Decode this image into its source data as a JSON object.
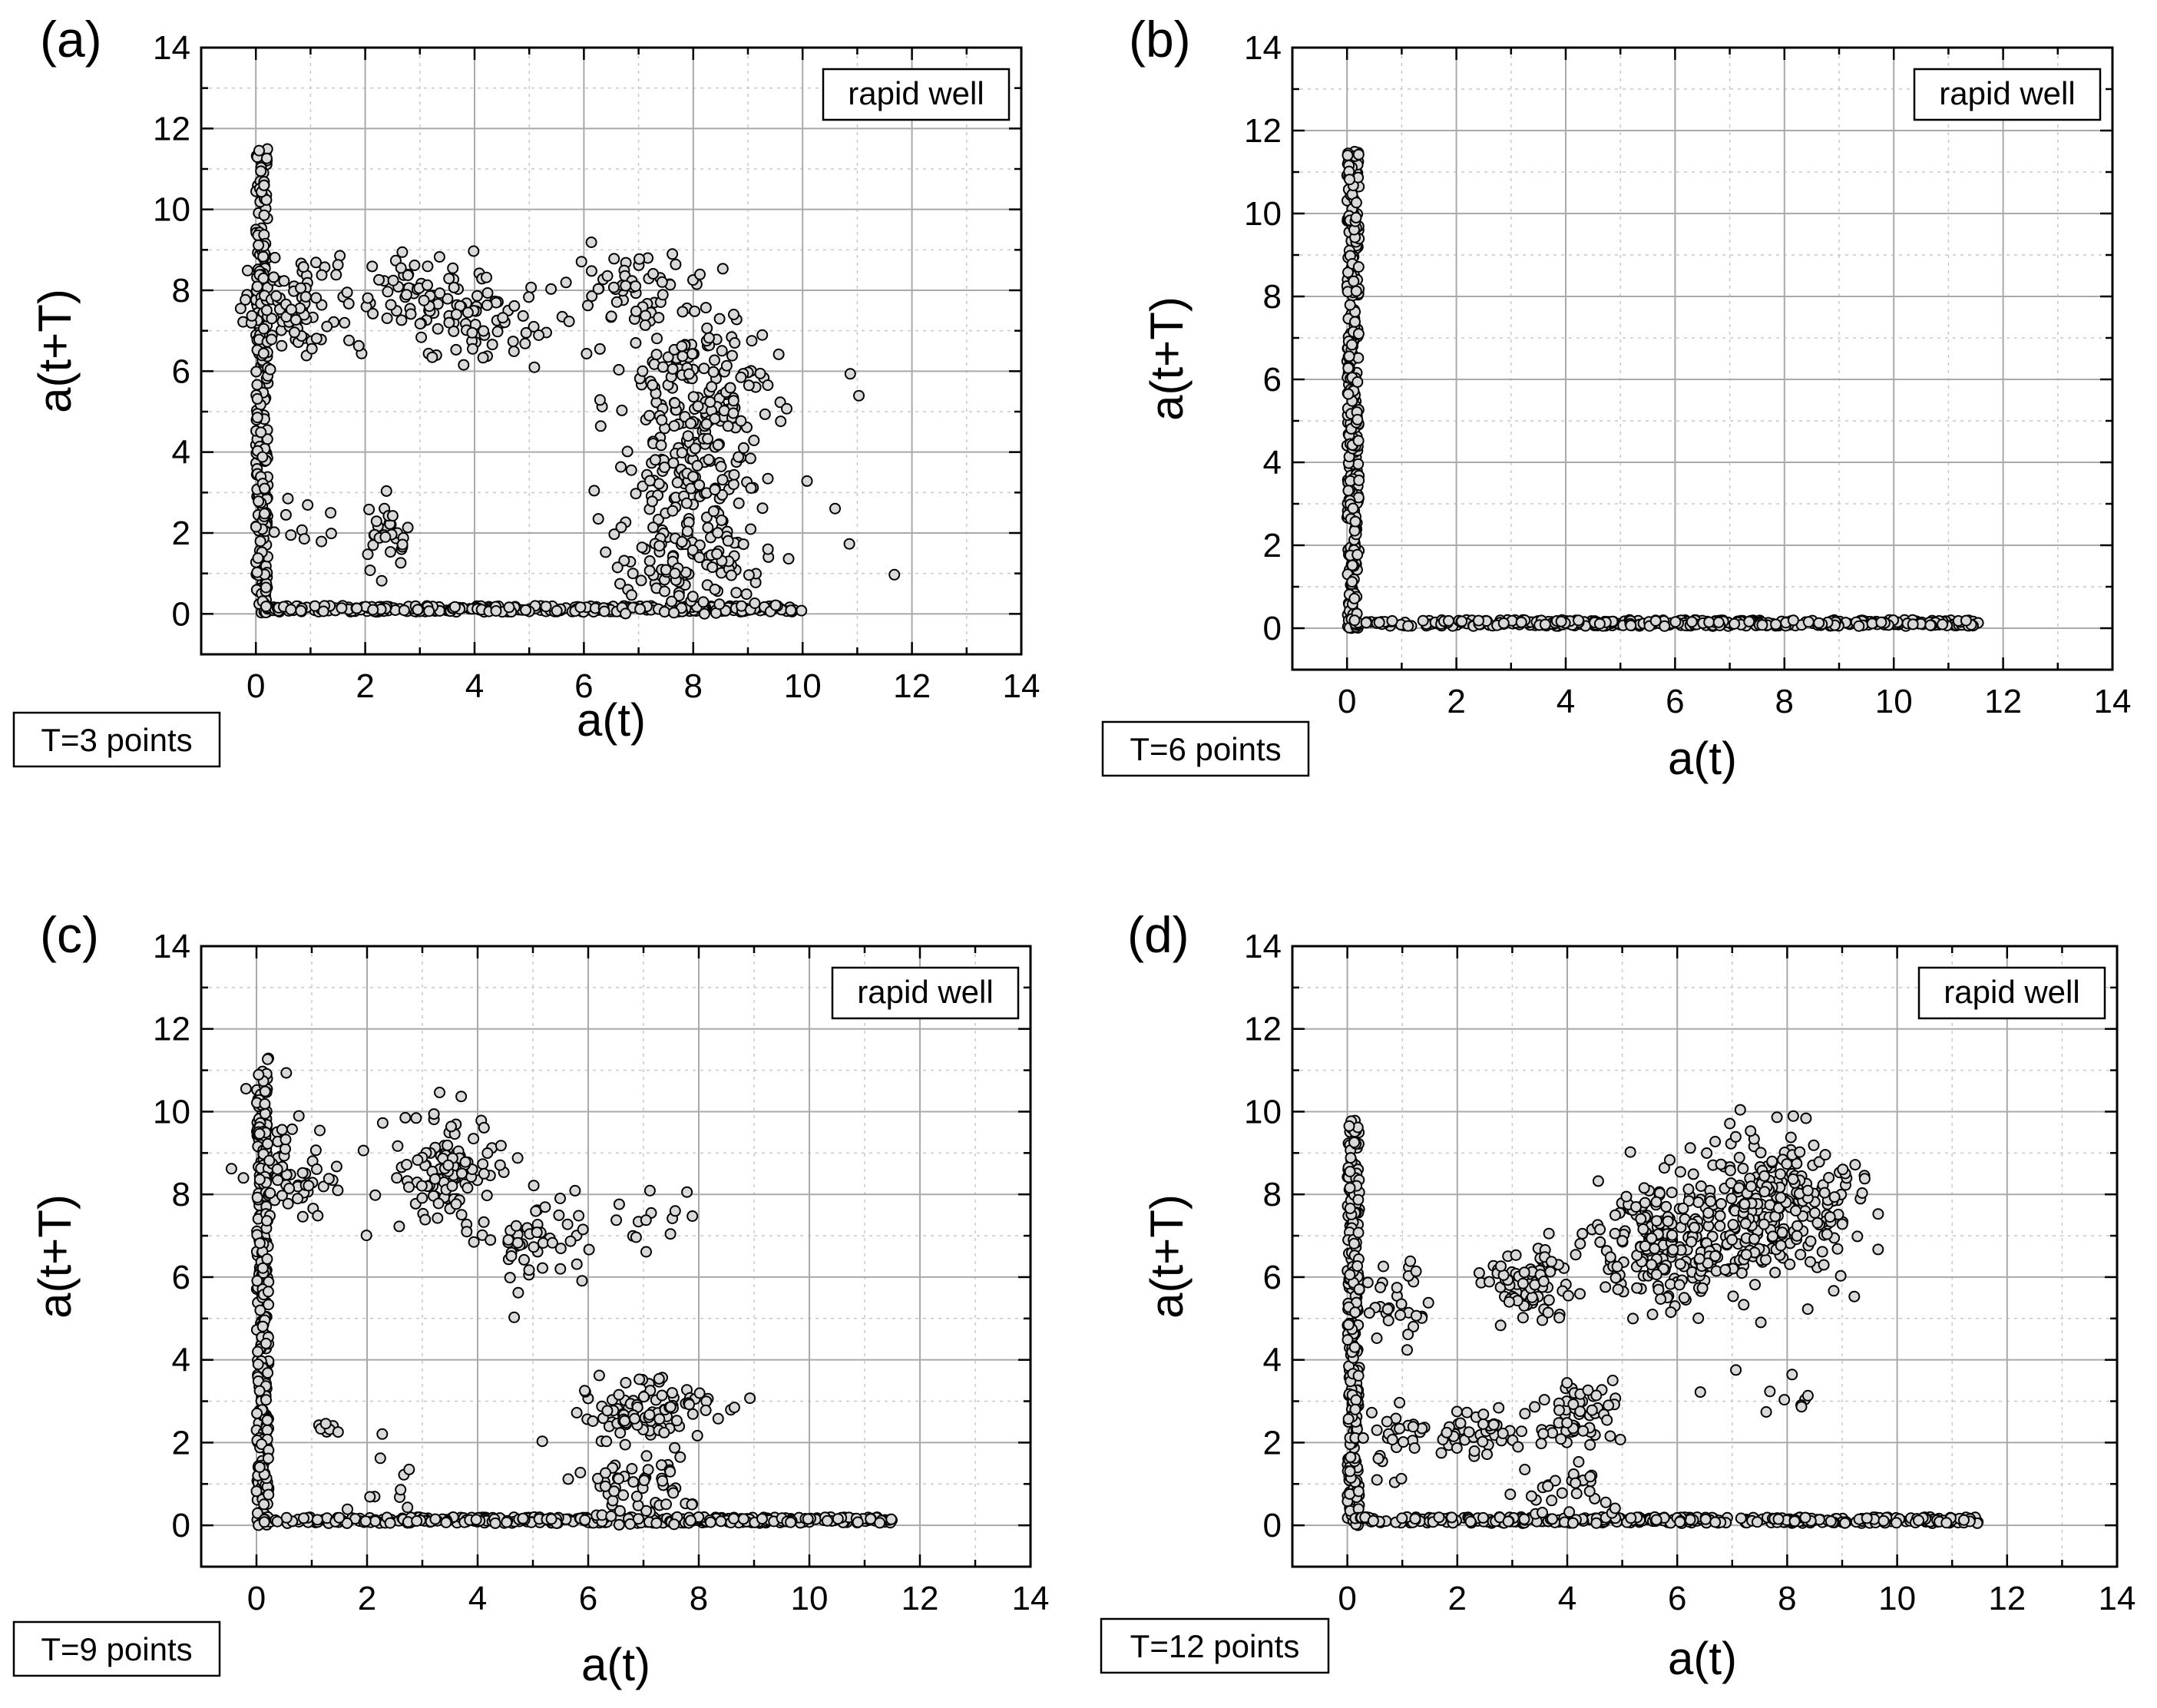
{
  "figure": {
    "description_labels": [
      "(a)",
      "(b)",
      "(c)",
      "(d)"
    ]
  },
  "chart_data": [
    {
      "type": "scatter",
      "panel_label": "(a)",
      "xlabel": "a(t)",
      "ylabel": "a(t+T)",
      "legend": "rapid well",
      "delay_label": "T=3 points",
      "xlim": [
        -1,
        14
      ],
      "ylim": [
        -1,
        14
      ],
      "xticks": [
        0,
        2,
        4,
        6,
        8,
        10,
        12,
        14
      ],
      "yticks": [
        0,
        2,
        4,
        6,
        8,
        10,
        12,
        14
      ],
      "grid": true,
      "marker_fill": "#d9d9d9",
      "marker_stroke": "#000000",
      "clusters": [
        {
          "shape": "vline",
          "x": [
            0.0,
            0.22
          ],
          "y": [
            0.0,
            11.5
          ],
          "n": 260
        },
        {
          "shape": "hline",
          "x": [
            0.1,
            10.0
          ],
          "y": [
            0.05,
            0.2
          ],
          "n": 320
        },
        {
          "shape": "blob",
          "cx": 0.8,
          "cy": 7.6,
          "sx": 0.6,
          "sy": 0.6,
          "n": 80
        },
        {
          "shape": "blob",
          "cx": 2.9,
          "cy": 8.0,
          "sx": 0.55,
          "sy": 0.6,
          "n": 60
        },
        {
          "shape": "blob",
          "cx": 4.2,
          "cy": 7.2,
          "sx": 0.55,
          "sy": 0.5,
          "n": 60
        },
        {
          "shape": "blob",
          "cx": 6.9,
          "cy": 8.0,
          "sx": 0.7,
          "sy": 0.6,
          "n": 60
        },
        {
          "shape": "blob",
          "cx": 8.1,
          "cy": 5.6,
          "sx": 0.7,
          "sy": 0.9,
          "n": 150
        },
        {
          "shape": "blob",
          "cx": 8.1,
          "cy": 3.4,
          "sx": 0.6,
          "sy": 0.8,
          "n": 110
        },
        {
          "shape": "blob",
          "cx": 8.0,
          "cy": 1.2,
          "sx": 0.7,
          "sy": 0.7,
          "n": 110
        },
        {
          "shape": "blob",
          "cx": 2.4,
          "cy": 1.8,
          "sx": 0.2,
          "sy": 0.5,
          "n": 30
        },
        {
          "shape": "blob",
          "cx": 1.0,
          "cy": 2.3,
          "sx": 0.3,
          "sy": 0.3,
          "n": 10
        },
        {
          "shape": "blob",
          "cx": 10.5,
          "cy": 3.0,
          "sx": 0.7,
          "sy": 1.8,
          "n": 8
        }
      ]
    },
    {
      "type": "scatter",
      "panel_label": "(b)",
      "xlabel": "a(t)",
      "ylabel": "a(t+T)",
      "legend": "rapid well",
      "delay_label": "T=6 points",
      "xlim": [
        -1,
        14
      ],
      "ylim": [
        -1,
        14
      ],
      "xticks": [
        0,
        2,
        4,
        6,
        8,
        10,
        12,
        14
      ],
      "yticks": [
        0,
        2,
        4,
        6,
        8,
        10,
        12,
        14
      ],
      "grid": true,
      "marker_fill": "#d9d9d9",
      "marker_stroke": "#000000",
      "clusters": [
        {
          "shape": "vline",
          "x": [
            0.0,
            0.22
          ],
          "y": [
            0.0,
            11.5
          ],
          "n": 320
        },
        {
          "shape": "hline",
          "x": [
            0.1,
            11.6
          ],
          "y": [
            0.05,
            0.2
          ],
          "n": 420
        }
      ]
    },
    {
      "type": "scatter",
      "panel_label": "(c)",
      "xlabel": "a(t)",
      "ylabel": "a(t+T)",
      "legend": "rapid well",
      "delay_label": "T=9 points",
      "xlim": [
        -1,
        14
      ],
      "ylim": [
        -1,
        14
      ],
      "xticks": [
        0,
        2,
        4,
        6,
        8,
        10,
        12,
        14
      ],
      "yticks": [
        0,
        2,
        4,
        6,
        8,
        10,
        12,
        14
      ],
      "grid": true,
      "marker_fill": "#d9d9d9",
      "marker_stroke": "#000000",
      "clusters": [
        {
          "shape": "vline",
          "x": [
            0.0,
            0.22
          ],
          "y": [
            0.0,
            11.3
          ],
          "n": 280
        },
        {
          "shape": "hline",
          "x": [
            0.1,
            11.5
          ],
          "y": [
            0.05,
            0.2
          ],
          "n": 380
        },
        {
          "shape": "blob",
          "cx": 0.6,
          "cy": 8.4,
          "sx": 0.4,
          "sy": 0.8,
          "n": 60
        },
        {
          "shape": "blob",
          "cx": 3.4,
          "cy": 8.5,
          "sx": 0.5,
          "sy": 0.7,
          "n": 110
        },
        {
          "shape": "blob",
          "cx": 5.0,
          "cy": 7.0,
          "sx": 0.6,
          "sy": 0.6,
          "n": 50
        },
        {
          "shape": "blob",
          "cx": 6.9,
          "cy": 7.2,
          "sx": 0.6,
          "sy": 0.6,
          "n": 15
        },
        {
          "shape": "blob",
          "cx": 7.2,
          "cy": 2.8,
          "sx": 0.6,
          "sy": 0.4,
          "n": 90
        },
        {
          "shape": "blob",
          "cx": 7.0,
          "cy": 0.9,
          "sx": 0.6,
          "sy": 0.5,
          "n": 60
        },
        {
          "shape": "blob",
          "cx": 1.2,
          "cy": 2.3,
          "sx": 0.2,
          "sy": 0.1,
          "n": 8
        },
        {
          "shape": "blob",
          "cx": 2.3,
          "cy": 1.0,
          "sx": 0.3,
          "sy": 0.8,
          "n": 10
        }
      ]
    },
    {
      "type": "scatter",
      "panel_label": "(d)",
      "xlabel": "a(t)",
      "ylabel": "a(t+T)",
      "legend": "rapid well",
      "delay_label": "T=12 points",
      "xlim": [
        -1,
        14
      ],
      "ylim": [
        -1,
        14
      ],
      "xticks": [
        0,
        2,
        4,
        6,
        8,
        10,
        12,
        14
      ],
      "yticks": [
        0,
        2,
        4,
        6,
        8,
        10,
        12,
        14
      ],
      "grid": true,
      "marker_fill": "#d9d9d9",
      "marker_stroke": "#000000",
      "clusters": [
        {
          "shape": "vline",
          "x": [
            0.0,
            0.22
          ],
          "y": [
            0.0,
            9.8
          ],
          "n": 260
        },
        {
          "shape": "hline",
          "x": [
            0.1,
            11.5
          ],
          "y": [
            0.05,
            0.2
          ],
          "n": 360
        },
        {
          "shape": "blob",
          "cx": 0.8,
          "cy": 5.5,
          "sx": 0.3,
          "sy": 0.5,
          "n": 30
        },
        {
          "shape": "blob",
          "cx": 3.3,
          "cy": 5.9,
          "sx": 0.4,
          "sy": 0.4,
          "n": 80
        },
        {
          "shape": "blob",
          "cx": 5.8,
          "cy": 6.8,
          "sx": 0.7,
          "sy": 0.8,
          "n": 200
        },
        {
          "shape": "blob",
          "cx": 7.8,
          "cy": 7.8,
          "sx": 0.8,
          "sy": 0.9,
          "n": 260
        },
        {
          "shape": "blob",
          "cx": 4.2,
          "cy": 2.7,
          "sx": 0.4,
          "sy": 0.4,
          "n": 60
        },
        {
          "shape": "blob",
          "cx": 2.2,
          "cy": 2.3,
          "sx": 0.5,
          "sy": 0.3,
          "n": 50
        },
        {
          "shape": "blob",
          "cx": 4.0,
          "cy": 0.8,
          "sx": 0.4,
          "sy": 0.4,
          "n": 30
        },
        {
          "shape": "blob",
          "cx": 7.8,
          "cy": 3.0,
          "sx": 0.6,
          "sy": 0.3,
          "n": 10
        },
        {
          "shape": "blob",
          "cx": 0.7,
          "cy": 2.0,
          "sx": 0.3,
          "sy": 0.6,
          "n": 20
        }
      ]
    }
  ]
}
